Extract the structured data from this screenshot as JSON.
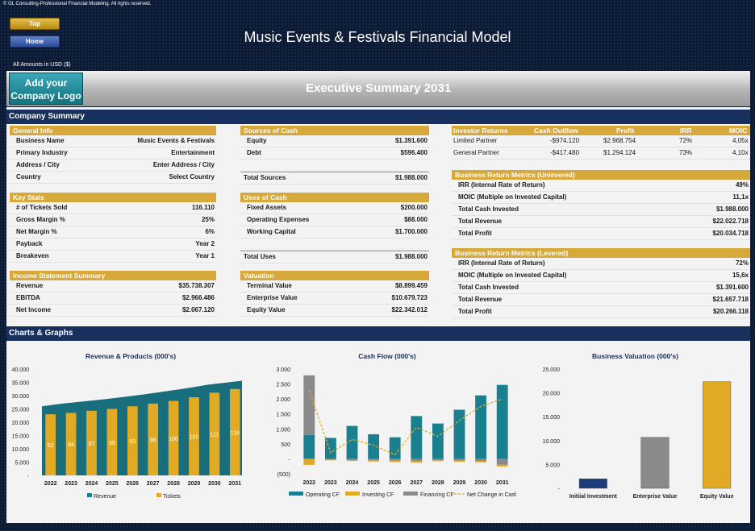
{
  "copyright": "© GL Consulting-Professional Financial Modeling. All rights reserved.",
  "nav": {
    "top": "Top",
    "home": "Home"
  },
  "title": "Music Events & Festivals Financial Model",
  "amounts": "All Amounts in  USD ($)",
  "logo": {
    "line1": "Add your",
    "line2": "Company Logo"
  },
  "exec_title": "Executive Summary 2031",
  "sections": {
    "company_summary": "Company Summary",
    "charts": "Charts & Graphs"
  },
  "general_info": {
    "title": "General Info",
    "rows": [
      {
        "label": "Business Name",
        "value": "Music Events & Festivals"
      },
      {
        "label": "Primary Industry",
        "value": "Entertainment"
      },
      {
        "label": "Address / City",
        "value": "Enter Address / City"
      },
      {
        "label": "Country",
        "value": "Select Country"
      }
    ]
  },
  "key_stats": {
    "title": "Key Stats",
    "rows": [
      {
        "label": "# of Tickets Sold",
        "value": "116.110"
      },
      {
        "label": "Gross Margin %",
        "value": "25%"
      },
      {
        "label": "Net Margin %",
        "value": "6%"
      },
      {
        "label": "Payback",
        "value": "Year 2"
      },
      {
        "label": "Breakeven",
        "value": "Year 1"
      }
    ]
  },
  "income_summary": {
    "title": "Income Statement Summary",
    "rows": [
      {
        "label": "Revenue",
        "value": "$35.738.307"
      },
      {
        "label": "EBITDA",
        "value": "$2.966.486"
      },
      {
        "label": "Net Income",
        "value": "$2.067.120"
      }
    ]
  },
  "sources": {
    "title": "Sources of Cash",
    "rows": [
      {
        "label": "Equity",
        "value": "$1.391.600"
      },
      {
        "label": "Debt",
        "value": "$596.400"
      }
    ],
    "total": {
      "label": "Total Sources",
      "value": "$1.988.000"
    }
  },
  "uses": {
    "title": "Uses of Cash",
    "rows": [
      {
        "label": "Fixed Assets",
        "value": "$200.000"
      },
      {
        "label": "Operating Expenses",
        "value": "$88.000"
      },
      {
        "label": "Working Capital",
        "value": "$1.700.000"
      }
    ],
    "total": {
      "label": "Total Uses",
      "value": "$1.988.000"
    }
  },
  "valuation": {
    "title": "Valuation",
    "rows": [
      {
        "label": "Terminal Value",
        "value": "$8.899.459"
      },
      {
        "label": "Enterprise Value",
        "value": "$10.679.723"
      },
      {
        "label": "Equity Value",
        "value": "$22.342.012"
      }
    ]
  },
  "investor_returns": {
    "headers": [
      "Investor Returns",
      "Cash Outflow",
      "Profit",
      "IRR",
      "MOIC"
    ],
    "rows": [
      [
        "Limited Partner",
        "-$974.120",
        "$2.968.754",
        "72%",
        "4,05x"
      ],
      [
        "General Partner",
        "-$417.480",
        "$1.294.124",
        "73%",
        "4,10x"
      ]
    ]
  },
  "unlevered": {
    "title": "Business Return Metrics (Unlevered)",
    "rows": [
      {
        "label": "IRR (Internal Rate of Return)",
        "value": "49%"
      },
      {
        "label": "MOIC (Multiple on Invested Capital)",
        "value": "11,1x"
      },
      {
        "label": "Total Cash Invested",
        "value": "$1.988.000"
      },
      {
        "label": "Total Revenue",
        "value": "$22.022.718"
      },
      {
        "label": "Total Profit",
        "value": "$20.034.718"
      }
    ]
  },
  "levered": {
    "title": "Business Return Metrics (Levered)",
    "rows": [
      {
        "label": "IRR (Internal Rate of Return)",
        "value": "72%"
      },
      {
        "label": "MOIC (Multiple on Invested Capital)",
        "value": "15,6x"
      },
      {
        "label": "Total Cash Invested",
        "value": "$1.391.600"
      },
      {
        "label": "Total Revenue",
        "value": "$21.657.718"
      },
      {
        "label": "Total Profit",
        "value": "$20.266.118"
      }
    ]
  },
  "chart_data": [
    {
      "type": "bar",
      "title": "Revenue & Products (000's)",
      "categories": [
        "2022",
        "2023",
        "2024",
        "2025",
        "2026",
        "2027",
        "2028",
        "2029",
        "2030",
        "2031"
      ],
      "ylim": [
        0,
        40000
      ],
      "yticks": [
        "-",
        "5.000",
        "10.000",
        "15.000",
        "20.000",
        "25.000",
        "30.000",
        "35.000",
        "40.000"
      ],
      "series": [
        {
          "name": "Revenue",
          "color": "#1a7f8e",
          "values": [
            26000,
            27000,
            27800,
            28600,
            29500,
            30500,
            31600,
            32700,
            34000,
            35700
          ]
        },
        {
          "name": "Tickets",
          "color": "#e0aa25",
          "values": [
            82,
            84,
            87,
            89,
            93,
            96,
            100,
            105,
            111,
            116
          ],
          "label_values": [
            "82",
            "84",
            "87",
            "89",
            "93",
            "96",
            "100",
            "105",
            "111",
            "116"
          ],
          "display_values": [
            23000,
            23500,
            24300,
            25000,
            26000,
            27000,
            28000,
            29400,
            31100,
            32500
          ]
        }
      ],
      "legend": "bottom"
    },
    {
      "type": "bar",
      "title": "Cash Flow (000's)",
      "categories": [
        "2022",
        "2023",
        "2024",
        "2025",
        "2026",
        "2027",
        "2028",
        "2029",
        "2030",
        "2031"
      ],
      "ylim": [
        -500,
        3000
      ],
      "yticks": [
        "(500)",
        "-",
        "500",
        "1.000",
        "1.500",
        "2.000",
        "2.500",
        "3.000"
      ],
      "ytick_values": [
        -500,
        0,
        500,
        1000,
        1500,
        2000,
        2500,
        3000
      ],
      "series": [
        {
          "name": "Operating CF",
          "color": "#1a7f8e",
          "values": [
            800,
            700,
            1100,
            820,
            720,
            1430,
            1180,
            1640,
            2120,
            2470
          ]
        },
        {
          "name": "Investing CF",
          "color": "#e0aa25",
          "values": [
            -200,
            -20,
            -30,
            -40,
            -50,
            -60,
            -30,
            -40,
            -50,
            -60
          ]
        },
        {
          "name": "Financing CF",
          "color": "#8a8a8a",
          "values": [
            1990,
            -30,
            -40,
            -50,
            -60,
            -70,
            -50,
            -60,
            -70,
            -200
          ]
        },
        {
          "name": "Net Change in Cash",
          "color": "#e0aa25",
          "type": "line",
          "values": [
            2300,
            200,
            650,
            450,
            140,
            1050,
            750,
            1280,
            1750,
            2000
          ]
        }
      ],
      "legend": "bottom"
    },
    {
      "type": "bar",
      "title": "Business Valuation (000's)",
      "categories": [
        "Initiial Investment",
        "Enterprise Value",
        "Equity Value"
      ],
      "ylim": [
        0,
        25000
      ],
      "yticks": [
        "-",
        "5.000",
        "10.000",
        "15.000",
        "20.000",
        "25.000"
      ],
      "values": [
        1988,
        10680,
        22342
      ],
      "colors": [
        "#1d3a7a",
        "#8a8a8a",
        "#e0aa25"
      ]
    }
  ]
}
